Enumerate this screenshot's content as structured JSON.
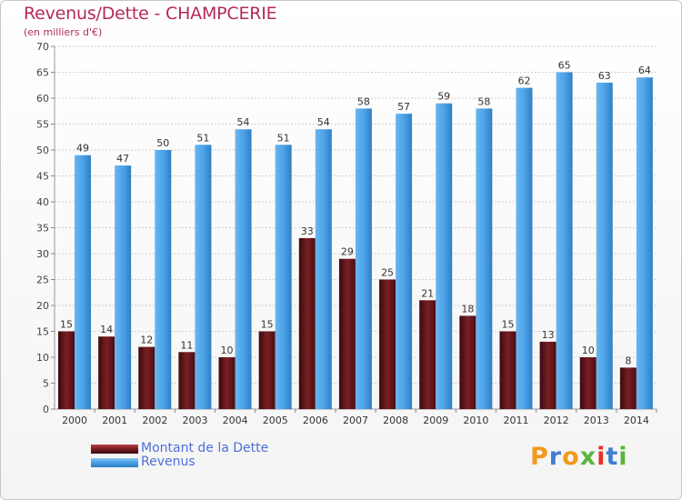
{
  "header": {
    "title": "Revenus/Dette - CHAMPCERIE",
    "subtitle": "(en milliers d'€)"
  },
  "colors": {
    "dette": "#7a1f24",
    "revenus": "#4aa0e6",
    "grid": "#d0d0d0",
    "title": "#b5295c"
  },
  "chart_data": {
    "type": "bar",
    "title": "Revenus/Dette - CHAMPCERIE",
    "subtitle": "(en milliers d'€)",
    "categories": [
      "2000",
      "2001",
      "2002",
      "2003",
      "2004",
      "2005",
      "2006",
      "2007",
      "2008",
      "2009",
      "2010",
      "2011",
      "2012",
      "2013",
      "2014"
    ],
    "series": [
      {
        "name": "Montant de la Dette",
        "values": [
          15,
          14,
          12,
          11,
          10,
          15,
          33,
          29,
          25,
          21,
          18,
          15,
          13,
          10,
          8
        ]
      },
      {
        "name": "Revenus",
        "values": [
          49,
          47,
          50,
          51,
          54,
          51,
          54,
          58,
          57,
          59,
          58,
          62,
          65,
          63,
          64
        ]
      }
    ],
    "ylim": [
      0,
      70
    ],
    "yticks": [
      0,
      5,
      10,
      15,
      20,
      25,
      30,
      35,
      40,
      45,
      50,
      55,
      60,
      65,
      70
    ],
    "grid": true,
    "legend_position": "bottom-left"
  },
  "legend": {
    "items": [
      {
        "label": "Montant de la Dette"
      },
      {
        "label": "Revenus"
      }
    ]
  },
  "logo": {
    "letters": [
      "P",
      "r",
      "o",
      "x",
      "i",
      "t",
      "i"
    ],
    "colors": [
      "#f29a1a",
      "#3f7fd0",
      "#f29a1a",
      "#5ab43c",
      "#e8332a",
      "#3f7fd0",
      "#5ab43c"
    ]
  }
}
